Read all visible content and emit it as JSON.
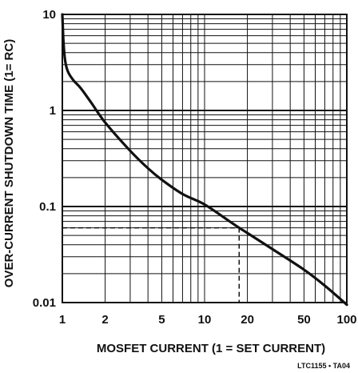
{
  "chart_data": {
    "type": "line",
    "title": "",
    "xlabel": "MOSFET CURRENT (1 = SET CURRENT)",
    "ylabel": "OVER-CURRENT SHUTDOWN TIME (1= RC)",
    "x_scale": "log",
    "y_scale": "log",
    "xlim": [
      1,
      100
    ],
    "ylim": [
      0.01,
      10
    ],
    "x_ticks": [
      {
        "value": 1,
        "label": "1"
      },
      {
        "value": 2,
        "label": "2"
      },
      {
        "value": 5,
        "label": "5"
      },
      {
        "value": 10,
        "label": "10"
      },
      {
        "value": 20,
        "label": "20"
      },
      {
        "value": 50,
        "label": "50"
      },
      {
        "value": 100,
        "label": "100"
      }
    ],
    "y_ticks": [
      {
        "value": 0.01,
        "label": "0.01"
      },
      {
        "value": 0.1,
        "label": "0.1"
      },
      {
        "value": 1,
        "label": "1"
      },
      {
        "value": 10,
        "label": "10"
      }
    ],
    "grid": true,
    "series": [
      {
        "x": [
          1.0,
          1.02,
          1.05,
          1.1,
          1.2,
          1.35,
          1.6,
          2,
          3,
          4,
          5,
          7,
          10,
          15,
          17.5,
          20,
          30,
          50,
          70,
          100
        ],
        "y": [
          10,
          5,
          3.2,
          2.5,
          2.05,
          1.7,
          1.2,
          0.75,
          0.38,
          0.25,
          0.19,
          0.135,
          0.105,
          0.07,
          0.06,
          0.053,
          0.036,
          0.022,
          0.015,
          0.0095
        ]
      }
    ],
    "annotations": [
      {
        "type": "dashed-guide",
        "x": 17.5,
        "y": 0.06
      }
    ],
    "figure_code": "LTC1155 • TA04"
  }
}
